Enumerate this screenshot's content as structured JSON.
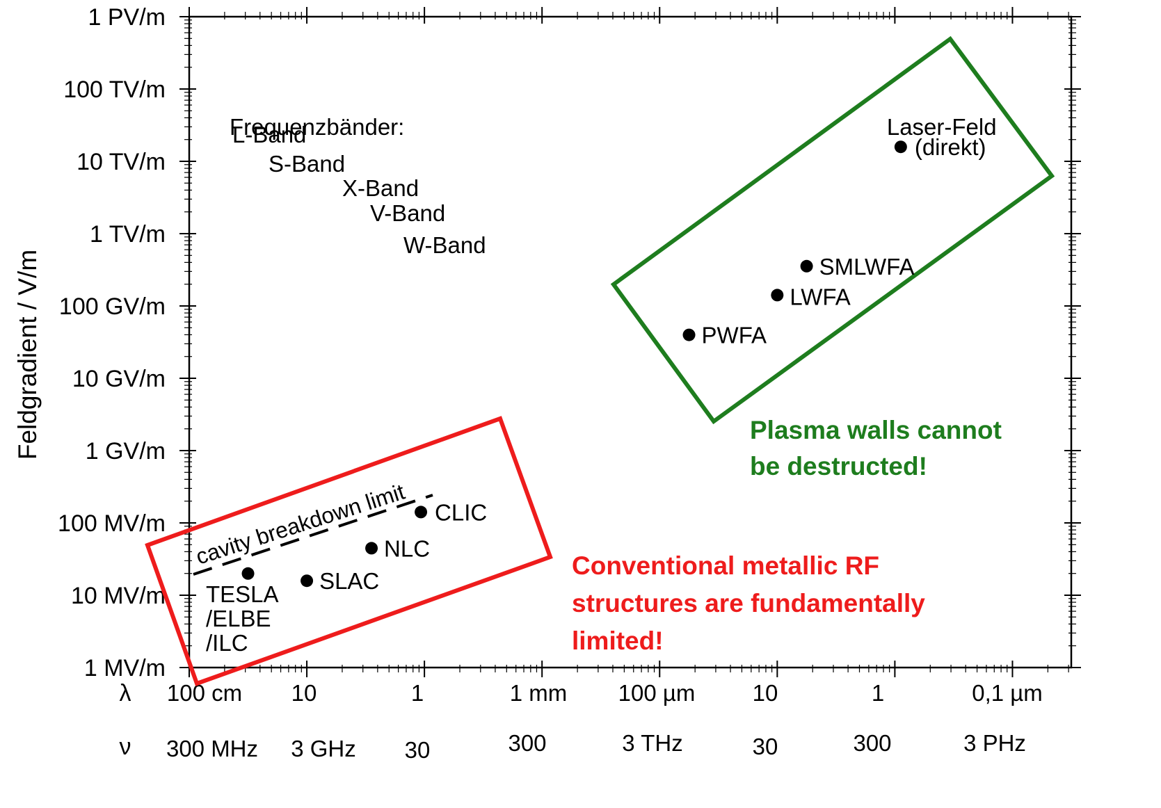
{
  "chart_data": {
    "type": "scatter",
    "ylabel": "Feldgradient / V/m",
    "yscale": "log",
    "xscale": "log",
    "x_axis_note": "decades of wavelength, 100 cm to 0.1 µm",
    "yticks": [
      "1 MV/m",
      "10 MV/m",
      "100 MV/m",
      "1 GV/m",
      "10 GV/m",
      "100 GV/m",
      "1 TV/m",
      "10 TV/m",
      "100 TV/m",
      "1 PV/m"
    ],
    "lambda_symbol": "λ",
    "nu_symbol": "ν",
    "lambda_ticks": [
      "100 cm",
      "10",
      "1",
      "1 mm",
      "100 µm",
      "10",
      "1",
      "0,1 µm"
    ],
    "nu_ticks": [
      "300 MHz",
      "3 GHz",
      "30",
      "300",
      "3 THz",
      "30",
      "300",
      "3 PHz"
    ],
    "points": [
      {
        "label": "TESLA /ELBE /ILC",
        "label_lines": [
          "TESLA",
          "/ELBE",
          "/ILC"
        ],
        "decade_x": 0.5,
        "log10_gradient": 7.3
      },
      {
        "label": "SLAC",
        "decade_x": 1.0,
        "log10_gradient": 7.2
      },
      {
        "label": "NLC",
        "decade_x": 1.55,
        "log10_gradient": 7.65
      },
      {
        "label": "CLIC",
        "decade_x": 1.97,
        "log10_gradient": 8.15
      },
      {
        "label": "PWFA",
        "decade_x": 4.25,
        "log10_gradient": 10.6
      },
      {
        "label": "LWFA",
        "decade_x": 5.0,
        "log10_gradient": 11.15
      },
      {
        "label": "SMLWFA",
        "decade_x": 5.25,
        "log10_gradient": 11.55
      },
      {
        "label": "Laser-Feld (direkt)",
        "label_lines": [
          "Laser-Feld",
          "(direkt)"
        ],
        "decade_x": 6.05,
        "log10_gradient": 13.2
      }
    ],
    "cavity_limit_label": "cavity breakdown limit",
    "bands_title": "Frequenzbänder:",
    "bands": [
      "L-Band",
      "S-Band",
      "X-Band",
      "V-Band",
      "W-Band"
    ],
    "annotation_green": [
      "Plasma walls cannot",
      "be destructed!"
    ],
    "annotation_red": [
      "Conventional metallic RF",
      "structures are fundamentally",
      "limited!"
    ],
    "colors": {
      "green": "#1e7d1e",
      "red": "#ee1c1c",
      "axis": "#000000"
    }
  }
}
